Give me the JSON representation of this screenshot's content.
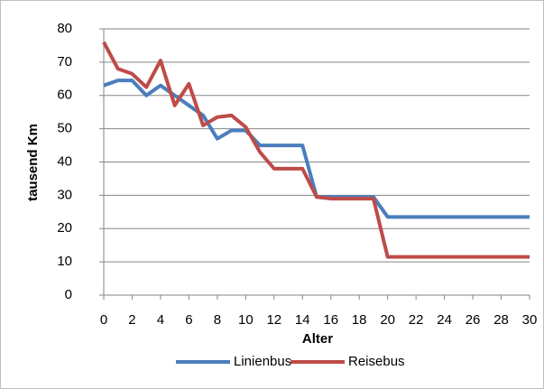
{
  "chart_data": {
    "type": "line",
    "x": [
      0,
      1,
      2,
      3,
      4,
      5,
      6,
      7,
      8,
      9,
      10,
      11,
      12,
      13,
      14,
      15,
      16,
      17,
      18,
      19,
      20,
      21,
      22,
      23,
      24,
      25,
      26,
      27,
      28,
      29,
      30
    ],
    "xlim": [
      0,
      30
    ],
    "xticks": [
      0,
      2,
      4,
      6,
      8,
      10,
      12,
      14,
      16,
      18,
      20,
      22,
      24,
      26,
      28,
      30
    ],
    "ylim": [
      0,
      80
    ],
    "yticks": [
      0,
      10,
      20,
      30,
      40,
      50,
      60,
      70,
      80
    ],
    "xlabel": "Alter",
    "ylabel": "tausend Km",
    "grid": true,
    "legend": "bottom",
    "series": [
      {
        "name": "Linienbus",
        "color": "#4a7ebb",
        "values": [
          63,
          64.5,
          64.5,
          60,
          63,
          60,
          57,
          54,
          47,
          49.5,
          49.5,
          45,
          45,
          45,
          45,
          29.5,
          29.5,
          29.5,
          29.5,
          29.5,
          23.5,
          23.5,
          23.5,
          23.5,
          23.5,
          23.5,
          23.5,
          23.5,
          23.5,
          23.5,
          23.5
        ]
      },
      {
        "name": "Reisebus",
        "color": "#be4b48",
        "values": [
          76,
          68,
          66.5,
          62.5,
          70.5,
          57,
          63.5,
          51,
          53.5,
          54,
          50.5,
          43,
          38,
          38,
          38,
          29.5,
          29,
          29,
          29,
          29,
          11.5,
          11.5,
          11.5,
          11.5,
          11.5,
          11.5,
          11.5,
          11.5,
          11.5,
          11.5,
          11.5
        ]
      }
    ]
  }
}
